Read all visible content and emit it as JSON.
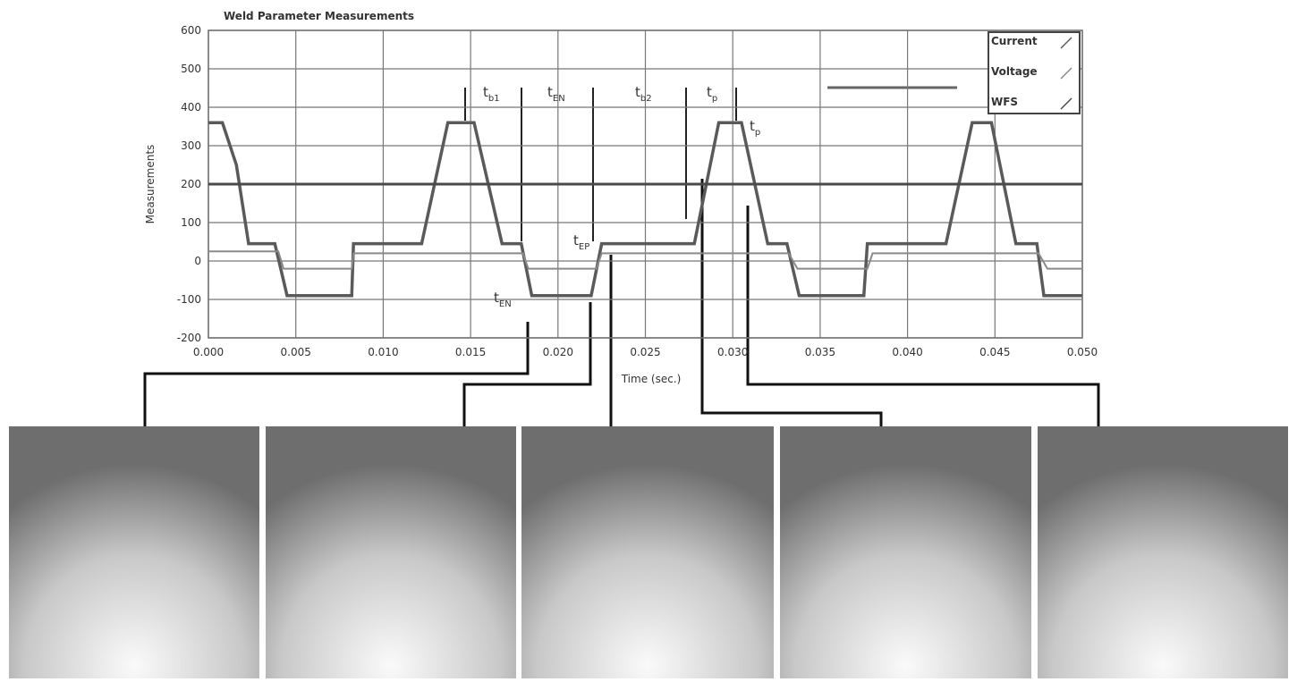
{
  "chart_data": {
    "type": "line",
    "title": "Weld Parameter Measurements",
    "xlabel": "Time (sec.)",
    "ylabel": "Measurements",
    "xlim": [
      0,
      0.05
    ],
    "ylim": [
      -200,
      600
    ],
    "xticks": [
      {
        "value": 0,
        "label": "0.000"
      },
      0.005,
      {
        "value": 0.01,
        "label": "0.010"
      },
      0.015,
      {
        "value": 0.02,
        "label": "0.020"
      },
      0.025,
      {
        "value": 0.03,
        "label": "0.030"
      },
      0.035,
      {
        "value": 0.04,
        "label": "0.040"
      },
      0.045,
      {
        "value": 0.05,
        "label": "0.050"
      }
    ],
    "yticks": [
      -200,
      -100,
      0,
      100,
      200,
      300,
      400,
      500,
      600
    ],
    "grid": true,
    "legend": "top-right",
    "series": [
      {
        "name": "Current",
        "color": "#5a5a5a",
        "x": [
          0,
          0.0008,
          0.0016,
          0.0023,
          0.0038,
          0.0045,
          0.0082,
          0.0083,
          0.0122,
          0.0137,
          0.0152,
          0.0168,
          0.0179,
          0.0185,
          0.0219,
          0.0225,
          0.0278,
          0.0292,
          0.0305,
          0.032,
          0.0331,
          0.0338,
          0.0375,
          0.0377,
          0.0422,
          0.0437,
          0.0448,
          0.0462,
          0.0474,
          0.0478,
          0.05
        ],
        "values": [
          360,
          360,
          250,
          45,
          45,
          -90,
          -90,
          45,
          45,
          360,
          360,
          45,
          45,
          -90,
          -90,
          45,
          45,
          360,
          360,
          45,
          45,
          -90,
          -90,
          45,
          45,
          360,
          360,
          45,
          45,
          -90,
          -90
        ]
      },
      {
        "name": "Voltage",
        "color": "#8a8a8a",
        "x": [
          0,
          0.004,
          0.0043,
          0.0082,
          0.0083,
          0.018,
          0.0183,
          0.0222,
          0.0225,
          0.0332,
          0.0337,
          0.0377,
          0.038,
          0.0475,
          0.048,
          0.05
        ],
        "values": [
          25,
          25,
          -20,
          -20,
          20,
          20,
          -20,
          -20,
          20,
          20,
          -20,
          -20,
          20,
          20,
          -20,
          -20
        ]
      },
      {
        "name": "WFS",
        "color": "#4a4a4a",
        "x": [
          0,
          0.05
        ],
        "values": [
          200,
          200
        ]
      }
    ],
    "annotations": [
      {
        "text": "t",
        "subscript": "b1"
      },
      {
        "text": "t",
        "subscript": "EN"
      },
      {
        "text": "t",
        "subscript": "b2"
      },
      {
        "text": "t",
        "subscript": "p"
      },
      {
        "text": "t",
        "subscript": "p"
      },
      {
        "text": "t",
        "subscript": "EP"
      },
      {
        "text": "t",
        "subscript": "EN"
      }
    ]
  }
}
